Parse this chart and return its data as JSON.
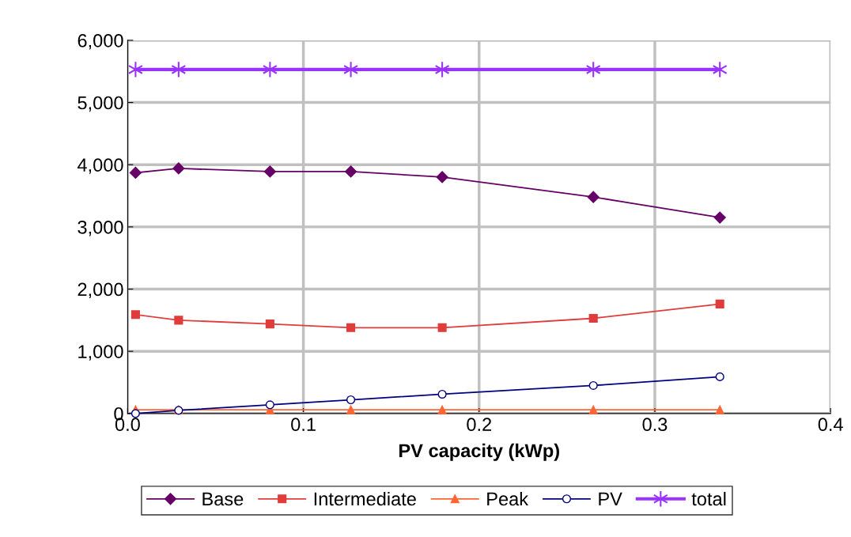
{
  "chart_data": {
    "type": "line",
    "xlabel": "PV capacity (kWp)",
    "xlim": [
      0,
      0.4
    ],
    "xticks": [
      {
        "value": 0,
        "label": "0.0"
      },
      {
        "value": 0.1,
        "label": "0.1"
      },
      {
        "value": 0.2,
        "label": "0.2"
      },
      {
        "value": 0.3,
        "label": "0.3"
      },
      {
        "value": 0.4,
        "label": "0.4"
      }
    ],
    "ylim": [
      0,
      6000
    ],
    "yticks": [
      {
        "value": 0,
        "label": "0"
      },
      {
        "value": 1000,
        "label": "1,000"
      },
      {
        "value": 2000,
        "label": "2,000"
      },
      {
        "value": 3000,
        "label": "3,000"
      },
      {
        "value": 4000,
        "label": "4,000"
      },
      {
        "value": 5000,
        "label": "5,000"
      },
      {
        "value": 6000,
        "label": "6,000"
      }
    ],
    "x": [
      0.0045,
      0.029,
      0.081,
      0.127,
      0.179,
      0.265,
      0.337
    ],
    "grid": true,
    "legend": "bottom",
    "line_style": "solid",
    "series": [
      {
        "name": "Base",
        "color": "#660066",
        "marker": "diamond",
        "values": [
          3870,
          3940,
          3890,
          3890,
          3800,
          3480,
          3150
        ]
      },
      {
        "name": "Intermediate",
        "color": "#e03c3c",
        "marker": "square",
        "values": [
          1590,
          1500,
          1440,
          1380,
          1380,
          1530,
          1760
        ]
      },
      {
        "name": "Peak",
        "color": "#ff6633",
        "marker": "triangle",
        "values": [
          60,
          60,
          60,
          60,
          60,
          60,
          60
        ]
      },
      {
        "name": "PV",
        "color": "#000080",
        "marker": "circle",
        "values": [
          0,
          50,
          140,
          220,
          310,
          450,
          590
        ]
      },
      {
        "name": "total",
        "color": "#9933ff",
        "marker": "cross",
        "values": [
          5530,
          5530,
          5530,
          5530,
          5530,
          5530,
          5530
        ]
      }
    ]
  }
}
